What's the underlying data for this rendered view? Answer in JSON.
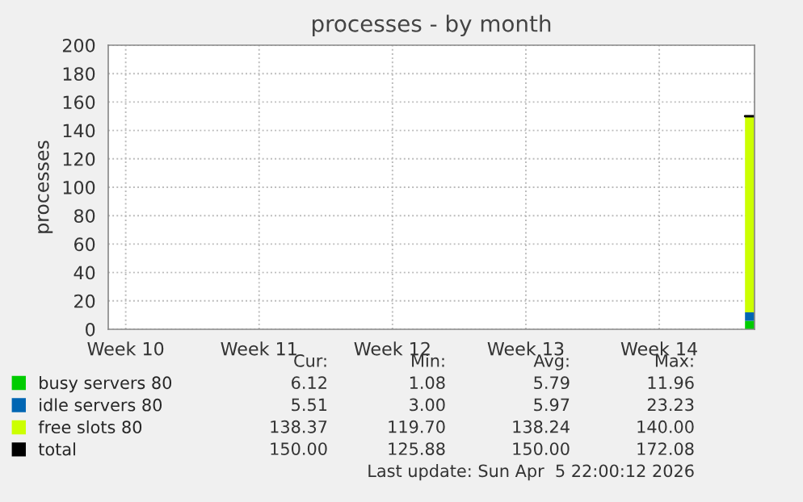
{
  "chart_data": {
    "type": "bar",
    "title": "processes - by month",
    "ylabel": "processes",
    "stacked": true,
    "xlim": [
      "2026-03-01T02:00",
      "2026-04-04T00:00"
    ],
    "xticks": [
      {
        "value": "2026-03-02",
        "label": "Week 10"
      },
      {
        "value": "2026-03-09",
        "label": "Week 11"
      },
      {
        "value": "2026-03-16",
        "label": "Week 12"
      },
      {
        "value": "2026-03-23",
        "label": "Week 13"
      },
      {
        "value": "2026-03-30",
        "label": "Week 14"
      }
    ],
    "ylim": [
      0,
      200
    ],
    "yticks": [
      0,
      20,
      40,
      60,
      80,
      100,
      120,
      140,
      160,
      180,
      200
    ],
    "grid": true,
    "legend": "bottom left",
    "series": [
      {
        "name": "busy servers 80",
        "color": "#00cc00",
        "x": [
          "2026-04-03T18:00"
        ],
        "values": [
          6
        ]
      },
      {
        "name": "idle servers 80",
        "color": "#0066b3",
        "x": [
          "2026-04-03T18:00"
        ],
        "values": [
          6
        ]
      },
      {
        "name": "free slots 80",
        "color": "#ccff00",
        "x": [
          "2026-04-03T18:00"
        ],
        "values": [
          138
        ]
      },
      {
        "name": "total",
        "type": "line",
        "color": "#000000",
        "x": [
          "2026-04-03T12:00",
          "2026-04-04T00:00"
        ],
        "values": [
          150,
          150
        ]
      }
    ],
    "annotations": [
      "Cur:",
      "Min:",
      "Avg:",
      "Max:",
      "6.12",
      "1.08",
      "5.79",
      "11.96",
      "5.51",
      "3.00",
      "5.97",
      "23.23",
      "138.37",
      "119.70",
      "138.24",
      "140.00",
      "150.00",
      "125.88",
      "150.00",
      "172.08",
      "Last update: Sun Apr  5 22:00:12 2026"
    ]
  }
}
